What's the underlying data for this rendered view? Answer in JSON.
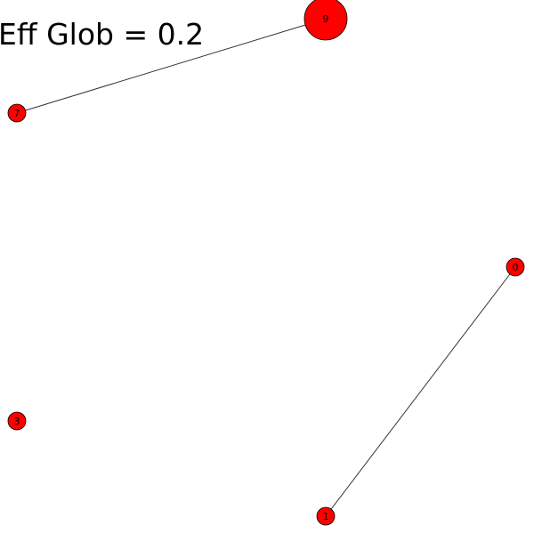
{
  "title": "Eff Glob = 0.2",
  "colors": {
    "node_fill": "#ff0000",
    "node_stroke": "#000000",
    "edge": "#333333",
    "background": "#ffffff"
  },
  "graph": {
    "nodes": [
      {
        "id": "9",
        "label": "9"
      },
      {
        "id": "7",
        "label": "7"
      },
      {
        "id": "0",
        "label": "0"
      },
      {
        "id": "3",
        "label": "3"
      },
      {
        "id": "1",
        "label": "1"
      }
    ],
    "edges": [
      {
        "source": "9",
        "target": "7"
      },
      {
        "source": "0",
        "target": "1"
      }
    ]
  }
}
